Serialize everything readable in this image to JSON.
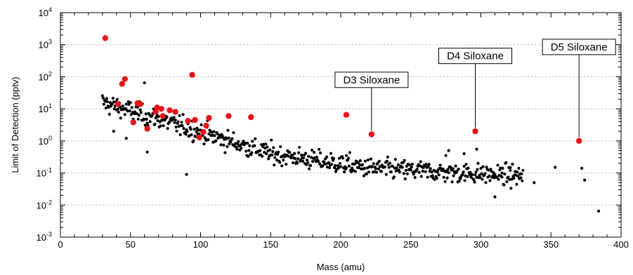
{
  "chart_data": {
    "type": "scatter",
    "xlabel": "Mass (amu)",
    "ylabel": "Limit of Detection (pptv)",
    "x_range": [
      0,
      400
    ],
    "y_range": [
      0.001,
      10000
    ],
    "y_scale": "log",
    "x_ticks": [
      "0",
      "50",
      "100",
      "150",
      "200",
      "250",
      "300",
      "350",
      "400"
    ],
    "y_ticks": [
      {
        "base": "10",
        "exp": "-3"
      },
      {
        "base": "10",
        "exp": "-2"
      },
      {
        "base": "10",
        "exp": "-1"
      },
      {
        "base": "10",
        "exp": "0"
      },
      {
        "base": "10",
        "exp": "1"
      },
      {
        "base": "10",
        "exp": "2"
      },
      {
        "base": "10",
        "exp": "3"
      },
      {
        "base": "10",
        "exp": "4"
      }
    ],
    "grid": "horizontal dotted at decades",
    "colors": {
      "ions": "#000000",
      "highlighted": "#e8141b"
    },
    "highlighted_points": [
      [
        32,
        1600
      ],
      [
        41,
        14
      ],
      [
        44,
        60
      ],
      [
        46,
        85
      ],
      [
        52,
        3.8
      ],
      [
        55,
        15
      ],
      [
        57,
        14
      ],
      [
        62,
        2.4
      ],
      [
        68,
        8
      ],
      [
        69,
        11
      ],
      [
        72,
        10
      ],
      [
        73,
        6
      ],
      [
        78,
        9
      ],
      [
        82,
        8
      ],
      [
        91,
        4.2
      ],
      [
        94,
        115
      ],
      [
        96,
        4.5
      ],
      [
        99,
        1.3
      ],
      [
        102,
        1.9
      ],
      [
        104,
        3
      ],
      [
        106,
        5.2
      ],
      [
        120,
        6
      ],
      [
        136,
        5.5
      ],
      [
        204,
        6.5
      ],
      [
        222,
        1.6
      ],
      [
        296,
        2
      ],
      [
        370,
        1
      ]
    ],
    "annotations": [
      {
        "text": "D3 Siloxane",
        "x": 222,
        "y": 1.6
      },
      {
        "text": "D4 Siloxane",
        "x": 296,
        "y": 2
      },
      {
        "text": "D5 Siloxane",
        "x": 370,
        "y": 1
      }
    ]
  }
}
